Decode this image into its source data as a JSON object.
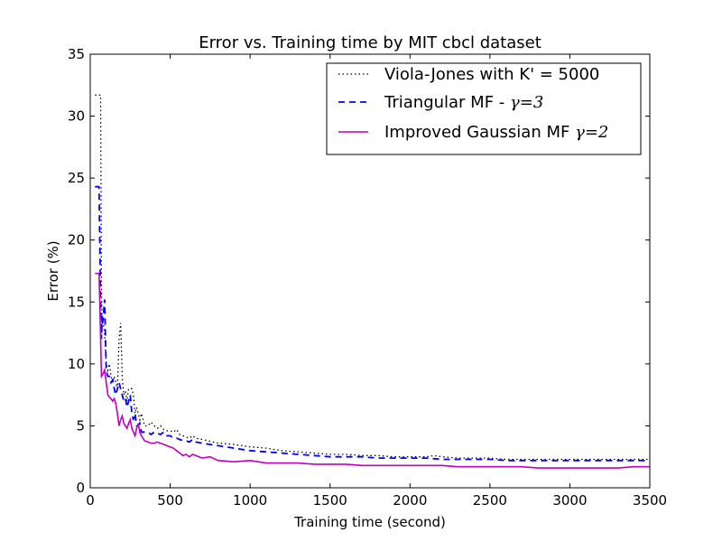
{
  "chart_data": {
    "type": "line",
    "title": "Error vs. Training time by MIT cbcl dataset",
    "xlabel": "Training time (second)",
    "ylabel": "Error (%)",
    "xlim": [
      0,
      3500
    ],
    "ylim": [
      0,
      35
    ],
    "xticks": [
      0,
      500,
      1000,
      1500,
      2000,
      2500,
      3000,
      3500
    ],
    "yticks": [
      0,
      5,
      10,
      15,
      20,
      25,
      30,
      35
    ],
    "grid": false,
    "legend_placement": "top-right",
    "series": [
      {
        "name": "Viola-Jones with K' = 5000",
        "label_prefix": "Viola-Jones with K' = 5000",
        "label_math": "",
        "color": "#000000",
        "style": "dotted",
        "points": [
          [
            30,
            31.7
          ],
          [
            45,
            31.7
          ],
          [
            55,
            31.7
          ],
          [
            65,
            31.7
          ],
          [
            70,
            16
          ],
          [
            75,
            13
          ],
          [
            80,
            13.5
          ],
          [
            90,
            12.5
          ],
          [
            100,
            10
          ],
          [
            110,
            9.5
          ],
          [
            120,
            10
          ],
          [
            130,
            9
          ],
          [
            140,
            8.5
          ],
          [
            150,
            9
          ],
          [
            160,
            8.5
          ],
          [
            170,
            8
          ],
          [
            180,
            12
          ],
          [
            190,
            13.3
          ],
          [
            200,
            9
          ],
          [
            210,
            7.5
          ],
          [
            220,
            7.8
          ],
          [
            230,
            7
          ],
          [
            240,
            8
          ],
          [
            250,
            8
          ],
          [
            260,
            8
          ],
          [
            270,
            7.5
          ],
          [
            280,
            6
          ],
          [
            290,
            6.5
          ],
          [
            300,
            6
          ],
          [
            310,
            5.5
          ],
          [
            320,
            6
          ],
          [
            330,
            5.5
          ],
          [
            340,
            5
          ],
          [
            360,
            5
          ],
          [
            380,
            5.3
          ],
          [
            400,
            5
          ],
          [
            420,
            4.8
          ],
          [
            440,
            5
          ],
          [
            460,
            4.7
          ],
          [
            480,
            4.6
          ],
          [
            500,
            4.6
          ],
          [
            520,
            4.5
          ],
          [
            540,
            4.7
          ],
          [
            560,
            4.3
          ],
          [
            580,
            4.2
          ],
          [
            600,
            4.1
          ],
          [
            620,
            4
          ],
          [
            640,
            4.2
          ],
          [
            660,
            4
          ],
          [
            700,
            3.9
          ],
          [
            800,
            3.6
          ],
          [
            900,
            3.5
          ],
          [
            1000,
            3.3
          ],
          [
            1100,
            3.2
          ],
          [
            1200,
            3
          ],
          [
            1300,
            2.9
          ],
          [
            1400,
            2.8
          ],
          [
            1500,
            2.7
          ],
          [
            1600,
            2.7
          ],
          [
            1700,
            2.6
          ],
          [
            1800,
            2.6
          ],
          [
            1900,
            2.5
          ],
          [
            2000,
            2.5
          ],
          [
            2100,
            2.5
          ],
          [
            2150,
            2.6
          ],
          [
            2200,
            2.5
          ],
          [
            2300,
            2.4
          ],
          [
            2400,
            2.4
          ],
          [
            2500,
            2.4
          ],
          [
            2600,
            2.3
          ],
          [
            2700,
            2.3
          ],
          [
            2800,
            2.3
          ],
          [
            2900,
            2.3
          ],
          [
            3000,
            2.3
          ],
          [
            3100,
            2.3
          ],
          [
            3200,
            2.3
          ],
          [
            3300,
            2.3
          ],
          [
            3400,
            2.3
          ],
          [
            3500,
            2.3
          ]
        ]
      },
      {
        "name": "Triangular MF - γ=3",
        "label_prefix": "Triangular MF - ",
        "label_math": "γ=3",
        "color": "#0000ff",
        "style": "dashed",
        "points": [
          [
            30,
            24.3
          ],
          [
            45,
            24.3
          ],
          [
            55,
            24.3
          ],
          [
            65,
            15
          ],
          [
            70,
            12
          ],
          [
            75,
            14
          ],
          [
            80,
            13.5
          ],
          [
            90,
            15.2
          ],
          [
            100,
            9.5
          ],
          [
            110,
            9
          ],
          [
            120,
            9
          ],
          [
            130,
            8.5
          ],
          [
            140,
            8.7
          ],
          [
            150,
            8
          ],
          [
            160,
            7.5
          ],
          [
            170,
            8
          ],
          [
            180,
            8.5
          ],
          [
            190,
            8
          ],
          [
            200,
            7.5
          ],
          [
            210,
            7
          ],
          [
            220,
            7.2
          ],
          [
            230,
            6.5
          ],
          [
            240,
            7
          ],
          [
            250,
            7.5
          ],
          [
            260,
            6
          ],
          [
            270,
            5.5
          ],
          [
            280,
            6
          ],
          [
            290,
            5
          ],
          [
            300,
            5
          ],
          [
            310,
            5.2
          ],
          [
            320,
            4.5
          ],
          [
            340,
            4.5
          ],
          [
            360,
            4.5
          ],
          [
            380,
            4.3
          ],
          [
            400,
            4.5
          ],
          [
            420,
            4.4
          ],
          [
            440,
            4.3
          ],
          [
            460,
            4.5
          ],
          [
            480,
            4.2
          ],
          [
            500,
            4.2
          ],
          [
            520,
            4
          ],
          [
            540,
            4
          ],
          [
            560,
            3.9
          ],
          [
            580,
            3.8
          ],
          [
            600,
            3.8
          ],
          [
            620,
            3.7
          ],
          [
            640,
            3.9
          ],
          [
            660,
            3.7
          ],
          [
            700,
            3.6
          ],
          [
            800,
            3.4
          ],
          [
            900,
            3.2
          ],
          [
            1000,
            3
          ],
          [
            1100,
            2.9
          ],
          [
            1200,
            2.8
          ],
          [
            1300,
            2.7
          ],
          [
            1400,
            2.6
          ],
          [
            1500,
            2.5
          ],
          [
            1600,
            2.5
          ],
          [
            1700,
            2.5
          ],
          [
            1800,
            2.4
          ],
          [
            1900,
            2.4
          ],
          [
            2000,
            2.4
          ],
          [
            2100,
            2.4
          ],
          [
            2200,
            2.3
          ],
          [
            2300,
            2.3
          ],
          [
            2400,
            2.3
          ],
          [
            2500,
            2.3
          ],
          [
            2600,
            2.2
          ],
          [
            2700,
            2.2
          ],
          [
            2800,
            2.2
          ],
          [
            2900,
            2.2
          ],
          [
            3000,
            2.2
          ],
          [
            3100,
            2.2
          ],
          [
            3200,
            2.2
          ],
          [
            3300,
            2.2
          ],
          [
            3400,
            2.2
          ],
          [
            3500,
            2.2
          ]
        ]
      },
      {
        "name": "Improved Gaussian MF γ=2",
        "label_prefix": "Improved Gaussian MF ",
        "label_math": "γ=2",
        "color": "#bf00bf",
        "style": "solid",
        "points": [
          [
            30,
            17.3
          ],
          [
            45,
            17.3
          ],
          [
            55,
            17.3
          ],
          [
            60,
            15
          ],
          [
            65,
            12
          ],
          [
            70,
            9
          ],
          [
            80,
            9.2
          ],
          [
            90,
            9.5
          ],
          [
            100,
            8.5
          ],
          [
            110,
            7.5
          ],
          [
            120,
            7.3
          ],
          [
            130,
            7.2
          ],
          [
            140,
            7
          ],
          [
            150,
            7.2
          ],
          [
            160,
            6.8
          ],
          [
            170,
            6
          ],
          [
            180,
            5
          ],
          [
            190,
            5.5
          ],
          [
            200,
            5.8
          ],
          [
            210,
            5.2
          ],
          [
            220,
            5
          ],
          [
            230,
            4.8
          ],
          [
            240,
            5.2
          ],
          [
            250,
            5.5
          ],
          [
            260,
            4.8
          ],
          [
            270,
            4.5
          ],
          [
            280,
            4.2
          ],
          [
            290,
            4.8
          ],
          [
            300,
            5.2
          ],
          [
            310,
            4.5
          ],
          [
            320,
            4.2
          ],
          [
            340,
            3.8
          ],
          [
            360,
            3.7
          ],
          [
            380,
            3.6
          ],
          [
            400,
            3.6
          ],
          [
            420,
            3.7
          ],
          [
            440,
            3.6
          ],
          [
            460,
            3.5
          ],
          [
            480,
            3.4
          ],
          [
            500,
            3.3
          ],
          [
            520,
            3.2
          ],
          [
            540,
            3
          ],
          [
            560,
            2.8
          ],
          [
            580,
            2.6
          ],
          [
            600,
            2.7
          ],
          [
            620,
            2.5
          ],
          [
            640,
            2.7
          ],
          [
            660,
            2.6
          ],
          [
            700,
            2.4
          ],
          [
            750,
            2.5
          ],
          [
            800,
            2.2
          ],
          [
            900,
            2.1
          ],
          [
            1000,
            2.2
          ],
          [
            1100,
            2
          ],
          [
            1200,
            2
          ],
          [
            1300,
            2
          ],
          [
            1400,
            1.9
          ],
          [
            1500,
            1.9
          ],
          [
            1600,
            1.9
          ],
          [
            1700,
            1.8
          ],
          [
            1800,
            1.8
          ],
          [
            1900,
            1.8
          ],
          [
            2000,
            1.8
          ],
          [
            2100,
            1.8
          ],
          [
            2200,
            1.8
          ],
          [
            2300,
            1.7
          ],
          [
            2400,
            1.7
          ],
          [
            2500,
            1.7
          ],
          [
            2600,
            1.7
          ],
          [
            2700,
            1.7
          ],
          [
            2800,
            1.6
          ],
          [
            2900,
            1.6
          ],
          [
            3000,
            1.6
          ],
          [
            3100,
            1.6
          ],
          [
            3200,
            1.6
          ],
          [
            3300,
            1.6
          ],
          [
            3400,
            1.7
          ],
          [
            3500,
            1.7
          ]
        ]
      }
    ]
  }
}
